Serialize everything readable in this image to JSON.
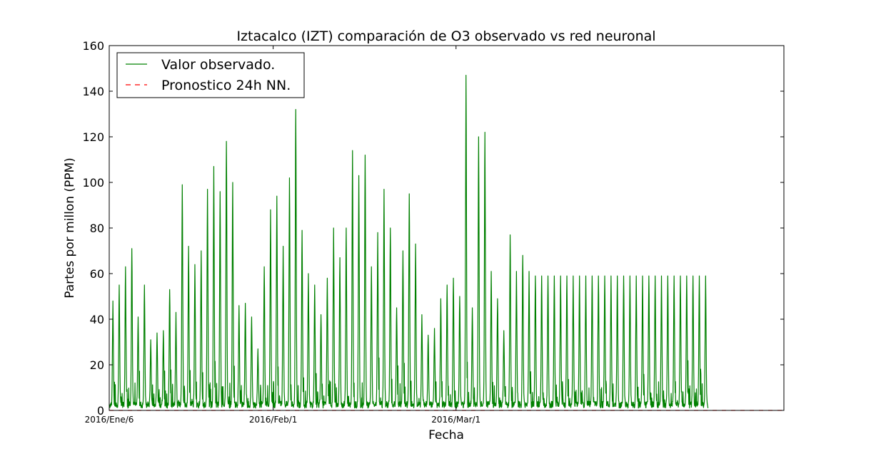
{
  "chart_data": {
    "type": "line",
    "title": "Iztacalco (IZT) comparación de O3 observado vs red neuronal",
    "xlabel": "Fecha",
    "ylabel": "Partes por millon (PPM)",
    "ylim": [
      0,
      160
    ],
    "yticks": [
      "0",
      "20",
      "40",
      "60",
      "80",
      "100",
      "120",
      "140",
      "160"
    ],
    "xlim": [
      "2016-01-06",
      "2016-04-22"
    ],
    "xticks": [
      {
        "date": "2016-01-06",
        "label": "2016/Ene/6"
      },
      {
        "date": "2016-02-01",
        "label": "2016/Feb/1"
      },
      {
        "date": "2016-03-01",
        "label": "2016/Mar/1"
      }
    ],
    "grid": false,
    "legend_position": "top-left",
    "series": [
      {
        "name": "Valor observado.",
        "color": "#008000",
        "style": "solid",
        "start": "2016-01-06",
        "end": "2016-04-10",
        "daily_peaks": [
          48,
          55,
          63,
          71,
          41,
          55,
          31,
          34,
          35,
          53,
          43,
          99,
          72,
          64,
          70,
          97,
          107,
          96,
          118,
          100,
          46,
          47,
          41,
          27,
          63,
          88,
          94,
          72,
          102,
          132,
          79,
          60,
          55,
          42,
          58,
          80,
          67,
          80,
          114,
          103,
          112,
          63,
          78,
          97,
          80,
          45,
          70,
          95,
          73,
          42,
          33,
          36,
          49,
          55,
          58,
          50,
          147,
          45,
          120,
          122,
          61,
          49,
          35,
          77,
          61,
          68,
          61,
          59
        ]
      },
      {
        "name": "Pronostico 24h NN.",
        "color": "#ff0000",
        "style": "dashed",
        "start": "2016-01-06",
        "end": "2016-04-22",
        "constant_value": 0
      }
    ]
  }
}
